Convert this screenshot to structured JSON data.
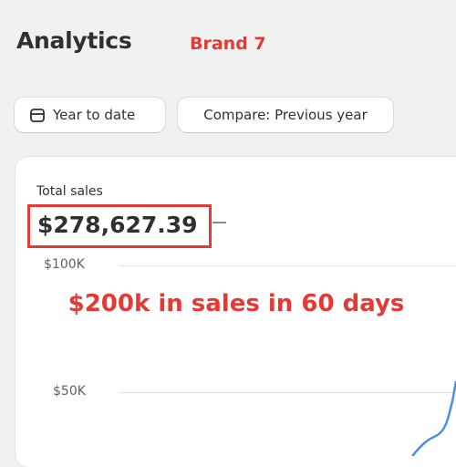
{
  "header": {
    "title": "Analytics",
    "annotation": "Brand 7"
  },
  "filters": {
    "date_range": "Year to date",
    "compare": "Compare: Previous year"
  },
  "card": {
    "metric_label": "Total sales",
    "metric_value": "$278,627.39",
    "axis_labels": [
      "$100K",
      "$50K"
    ],
    "annotation": "$200k in sales in 60 days"
  }
}
